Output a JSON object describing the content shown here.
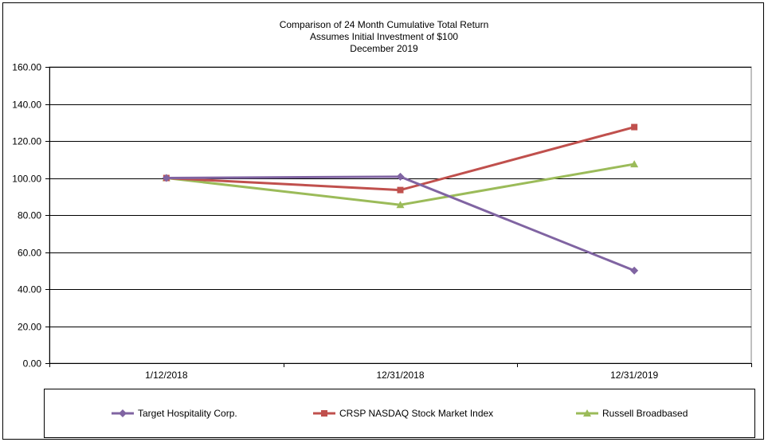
{
  "chart_data": {
    "type": "line",
    "title": "Comparison of 24 Month Cumulative Total Return",
    "subtitle": "Assumes Initial Investment of $100",
    "subtitle2": "December 2019",
    "categories": [
      "1/12/2018",
      "12/31/2018",
      "12/31/2019"
    ],
    "ylim": [
      0,
      160
    ],
    "yticks": [
      "0.00",
      "20.00",
      "40.00",
      "60.00",
      "80.00",
      "100.00",
      "120.00",
      "140.00",
      "160.00"
    ],
    "grid": true,
    "legend": "bottom",
    "series": [
      {
        "name": "Target Hospitality Corp.",
        "values": [
          100.0,
          100.7,
          50.0
        ],
        "color": "#8064a2",
        "marker": "diamond"
      },
      {
        "name": "CRSP NASDAQ Stock Market Index",
        "values": [
          100.0,
          93.5,
          127.5
        ],
        "color": "#c0504d",
        "marker": "square"
      },
      {
        "name": "Russell Broadbased",
        "values": [
          100.0,
          85.5,
          107.5
        ],
        "color": "#9bbb59",
        "marker": "triangle"
      }
    ]
  }
}
